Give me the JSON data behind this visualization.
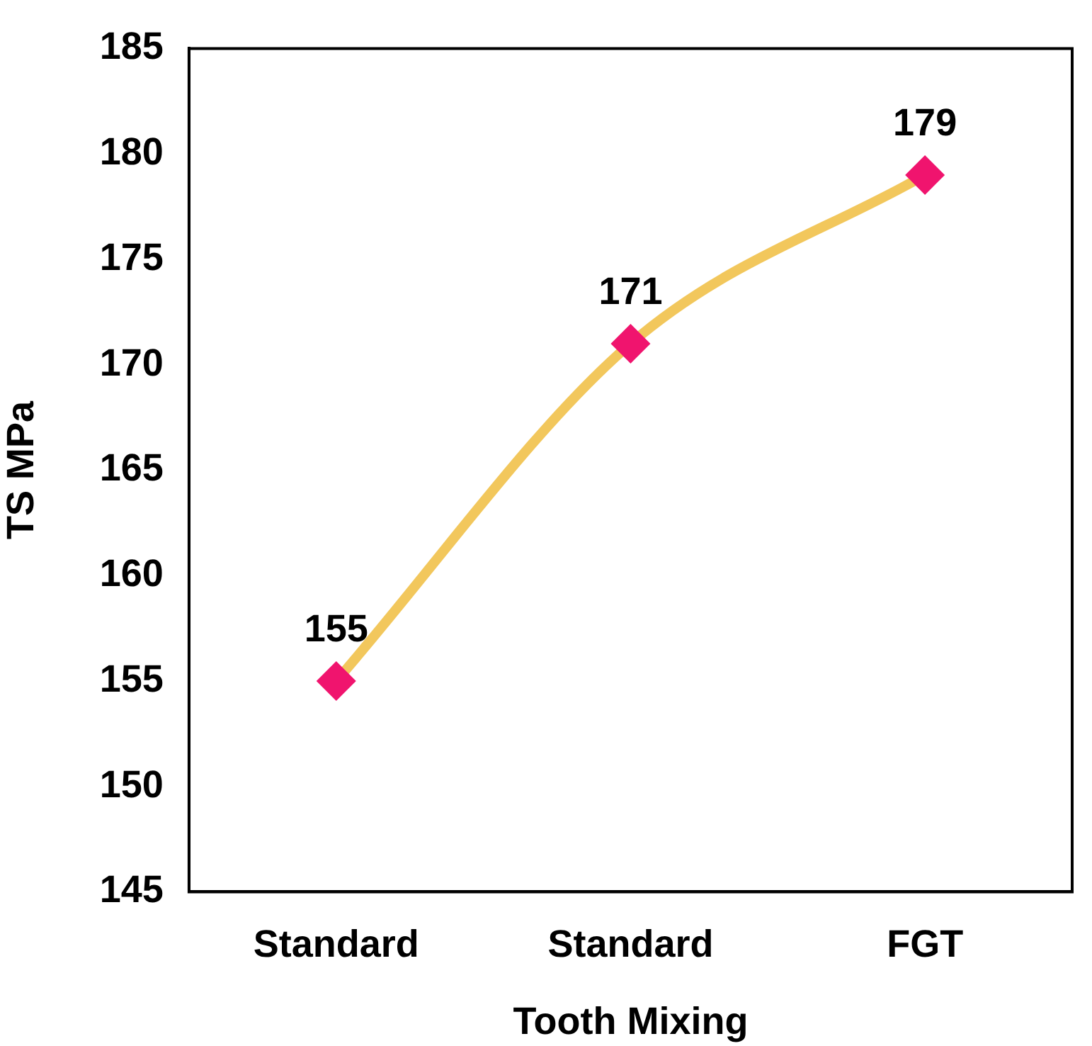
{
  "chart_data": {
    "type": "line",
    "xlabel": "Tooth Mixing",
    "ylabel": "TS MPa",
    "categories": [
      "Standard",
      "Standard",
      "FGT"
    ],
    "series": [
      {
        "color": "#f2c75c",
        "colors": [
          "#f0146e",
          "#f0146e",
          "#f0146e"
        ],
        "values": [
          155,
          171,
          179
        ]
      }
    ],
    "ylim": [
      145,
      185
    ],
    "yticks": [
      145,
      150,
      155,
      160,
      165,
      170,
      175,
      180,
      185
    ],
    "grid": false,
    "legend": false,
    "marker": "diamond",
    "line_style": "solid",
    "data_labels": true
  }
}
